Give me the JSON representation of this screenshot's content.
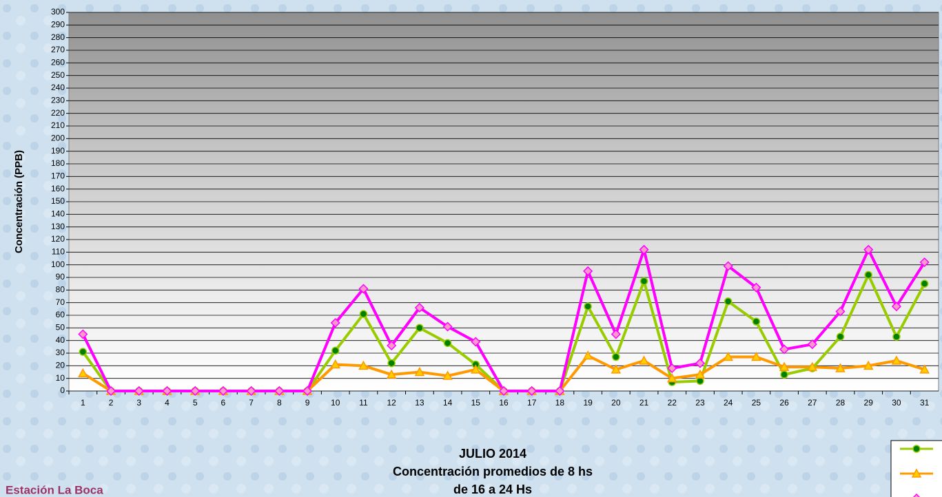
{
  "chart_data": {
    "type": "line",
    "title_lines": [
      "JULIO 2014",
      "Concentración promedios de 8 hs",
      "de 16 a 24 Hs"
    ],
    "station": "Estación La Boca",
    "y_label": "Concentración  (PPB)",
    "categories": [
      "1",
      "2",
      "3",
      "4",
      "5",
      "6",
      "7",
      "8",
      "9",
      "10",
      "11",
      "12",
      "13",
      "14",
      "15",
      "16",
      "17",
      "18",
      "19",
      "20",
      "21",
      "22",
      "23",
      "24",
      "25",
      "26",
      "27",
      "28",
      "29",
      "30",
      "31"
    ],
    "series": [
      {
        "color": "#99cc00",
        "marker_color": "#008000",
        "marker": "circle",
        "values": [
          31,
          0,
          0,
          0,
          0,
          0,
          0,
          0,
          0,
          32,
          61,
          22,
          50,
          38,
          21,
          0,
          0,
          0,
          67,
          27,
          87,
          7,
          8,
          71,
          55,
          13,
          18,
          43,
          92,
          43,
          85
        ]
      },
      {
        "color": "#ff9900",
        "marker_color": "#ffcc00",
        "marker": "triangle",
        "values": [
          14,
          0,
          0,
          0,
          0,
          0,
          0,
          0,
          0,
          21,
          20,
          13,
          15,
          12,
          17,
          0,
          0,
          0,
          28,
          17,
          24,
          10,
          13,
          27,
          27,
          19,
          19,
          18,
          20,
          24,
          17
        ]
      },
      {
        "color": "#ff00ff",
        "marker_color": "#ff99cc",
        "marker": "diamond",
        "values": [
          45,
          0,
          0,
          0,
          0,
          0,
          0,
          0,
          0,
          54,
          81,
          36,
          66,
          51,
          39,
          0,
          0,
          0,
          95,
          45,
          112,
          18,
          22,
          99,
          82,
          33,
          37,
          63,
          112,
          67,
          102
        ]
      }
    ],
    "ylim": [
      0,
      300
    ],
    "yticks": [
      0,
      10,
      20,
      30,
      40,
      50,
      60,
      70,
      80,
      90,
      100,
      110,
      120,
      130,
      140,
      150,
      160,
      170,
      180,
      190,
      200,
      210,
      220,
      230,
      240,
      250,
      260,
      270,
      280,
      290,
      300
    ],
    "grid": true
  }
}
